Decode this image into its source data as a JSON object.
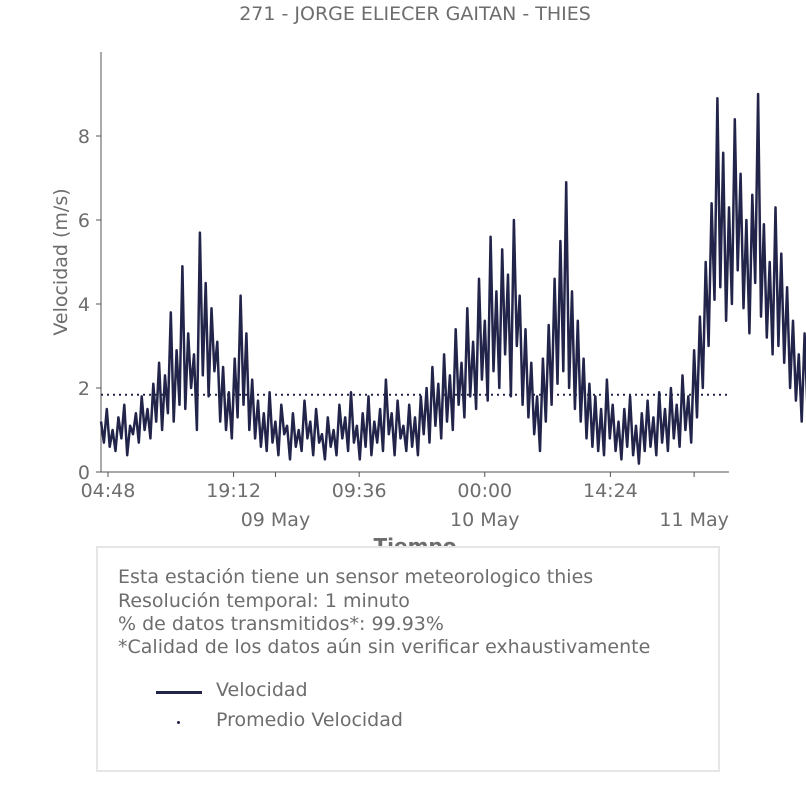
{
  "chart_data": {
    "type": "line",
    "title": "271 - JORGE ELIECER GAITAN - THIES",
    "xlabel": "Tiempo",
    "ylabel": "Velocidad (m/s)",
    "x_range": [
      "2019-05-08T04:00",
      "2019-05-11T04:00"
    ],
    "ylim": [
      0,
      10
    ],
    "y_ticks": [
      0,
      2,
      4,
      6,
      8
    ],
    "x_ticks": [
      {
        "at": "2019-05-08T04:48",
        "label": "04:48",
        "sublabel": ""
      },
      {
        "at": "2019-05-08T19:12",
        "label": "19:12",
        "sublabel": ""
      },
      {
        "at": "2019-05-09T00:00",
        "label": "",
        "sublabel": "09 May"
      },
      {
        "at": "2019-05-09T09:36",
        "label": "09:36",
        "sublabel": ""
      },
      {
        "at": "2019-05-10T00:00",
        "label": "00:00",
        "sublabel": "10 May"
      },
      {
        "at": "2019-05-10T14:24",
        "label": "14:24",
        "sublabel": ""
      },
      {
        "at": "2019-05-11T00:00",
        "label": "",
        "sublabel": "11 May"
      }
    ],
    "grid": false,
    "series": [
      {
        "name": "Velocidad",
        "color": "#22244a",
        "style": "solid",
        "x_start": "2019-05-08T04:00",
        "x_step_minutes": 20,
        "values": [
          1.2,
          0.7,
          1.5,
          0.6,
          1.0,
          0.5,
          1.3,
          0.8,
          1.6,
          0.4,
          1.1,
          0.9,
          1.4,
          0.7,
          1.8,
          1.0,
          1.5,
          0.8,
          2.1,
          1.2,
          2.6,
          1.0,
          2.3,
          1.4,
          3.8,
          1.2,
          2.9,
          1.6,
          4.9,
          1.5,
          3.3,
          2.0,
          2.8,
          1.0,
          5.7,
          2.3,
          4.5,
          1.8,
          3.9,
          2.4,
          3.1,
          1.2,
          2.5,
          1.0,
          1.9,
          0.8,
          2.7,
          1.3,
          4.2,
          1.6,
          3.3,
          1.0,
          2.2,
          0.8,
          1.7,
          0.6,
          1.4,
          0.5,
          1.9,
          0.7,
          1.2,
          0.4,
          1.6,
          0.9,
          1.1,
          0.3,
          1.4,
          0.6,
          1.0,
          0.5,
          1.7,
          0.8,
          1.2,
          0.4,
          1.5,
          0.7,
          0.9,
          0.3,
          1.3,
          0.6,
          1.0,
          0.4,
          1.6,
          0.8,
          1.3,
          0.5,
          1.9,
          0.7,
          1.1,
          0.3,
          1.4,
          0.6,
          1.8,
          0.4,
          1.2,
          0.7,
          1.5,
          0.5,
          2.2,
          0.9,
          1.4,
          0.4,
          1.7,
          0.8,
          1.1,
          0.5,
          1.6,
          0.6,
          1.3,
          0.4,
          1.8,
          0.9,
          2.0,
          0.7,
          2.5,
          1.1,
          2.1,
          0.8,
          2.8,
          1.2,
          2.3,
          1.0,
          3.4,
          1.6,
          2.6,
          1.3,
          3.9,
          1.8,
          3.1,
          1.5,
          4.6,
          2.2,
          3.6,
          1.7,
          5.6,
          2.4,
          4.3,
          2.0,
          5.3,
          2.8,
          4.7,
          1.8,
          6.0,
          3.0,
          4.2,
          1.6,
          3.4,
          1.3,
          2.6,
          0.9,
          1.8,
          0.5,
          2.7,
          1.2,
          3.5,
          1.6,
          4.6,
          2.1,
          5.5,
          2.4,
          6.9,
          2.0,
          4.3,
          1.5,
          3.6,
          1.2,
          2.7,
          0.8,
          2.1,
          0.6,
          1.8,
          0.5,
          1.5,
          0.4,
          2.2,
          0.8,
          1.6,
          0.5,
          1.2,
          0.3,
          1.5,
          0.6,
          1.8,
          0.4,
          1.1,
          0.2,
          1.4,
          0.5,
          1.7,
          0.6,
          1.3,
          0.4,
          1.9,
          0.7,
          1.5,
          0.5,
          2.0,
          0.8,
          1.6,
          0.6,
          2.3,
          1.0,
          1.8,
          0.7,
          2.9,
          1.3,
          3.7,
          2.0,
          5.0,
          3.0,
          6.4,
          4.1,
          8.9,
          4.4,
          7.6,
          3.6,
          6.3,
          4.0,
          8.4,
          4.8,
          7.1,
          3.9,
          6.0,
          3.3,
          6.6,
          4.5,
          9.0,
          3.7,
          5.9,
          3.2,
          5.0,
          2.8,
          6.3,
          3.0,
          5.2,
          2.6,
          4.4,
          2.0,
          3.6,
          1.7,
          2.8,
          1.2,
          3.3,
          1.5,
          2.6,
          1.1,
          2.1,
          0.8,
          1.8,
          0.6,
          2.0,
          0.5,
          1.5,
          0.4,
          1.9,
          0.7,
          1.2,
          0.3,
          1.6,
          0.6,
          1.4
        ]
      },
      {
        "name": "Promedio Velocidad",
        "color": "#22244a",
        "style": "dotted",
        "constant": 1.84
      }
    ]
  },
  "info": {
    "lines": [
      "Esta estación tiene un sensor meteorologico thies",
      "Resolución temporal: 1 minuto",
      "% de datos transmitidos*: 99.93%",
      "*Calidad de los datos aún sin verificar exhaustivamente"
    ]
  }
}
